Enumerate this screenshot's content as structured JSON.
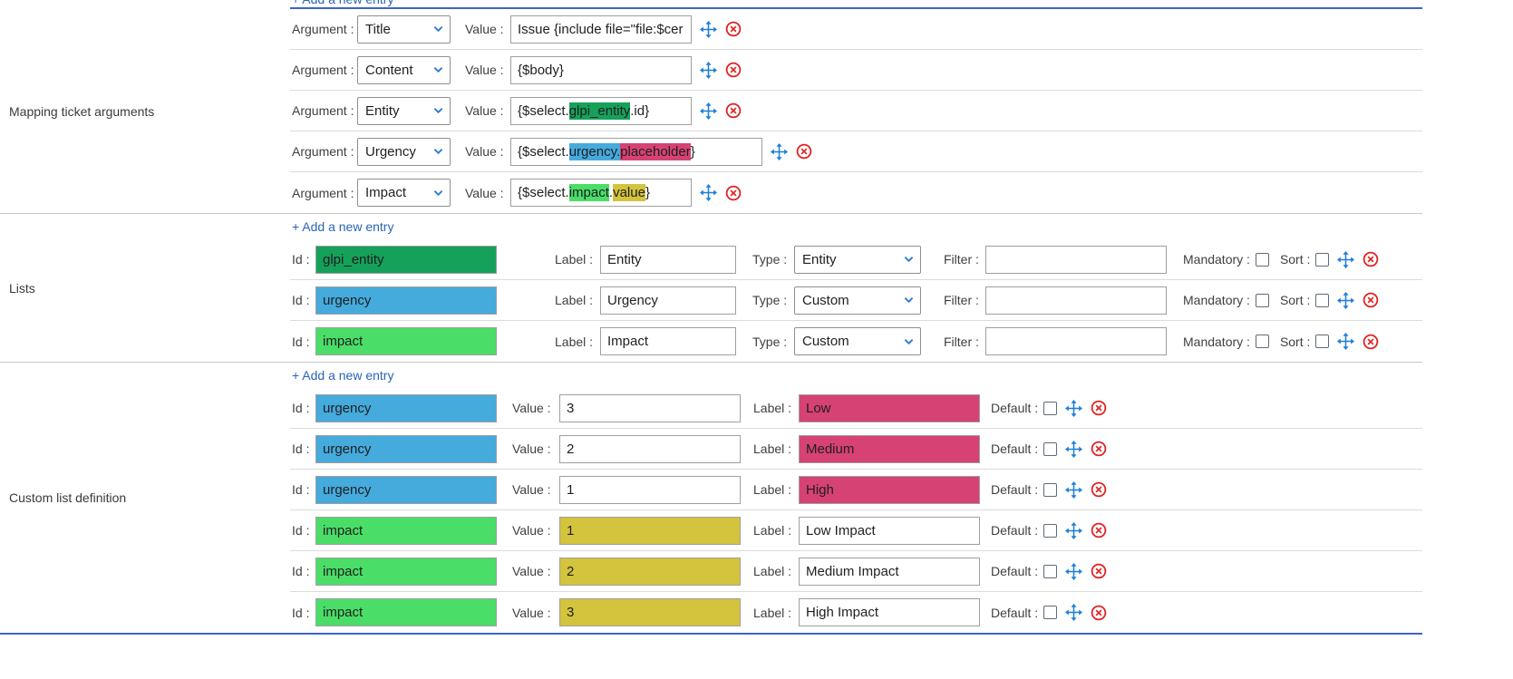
{
  "colors": {
    "entity_green": "#16a15b",
    "urgency_blue": "#45aadc",
    "impact_green": "#4ade68",
    "pink": "#d64273",
    "yellow": "#d4c33c",
    "link_blue": "#2864b8",
    "divider_blue": "#3c64c8",
    "move_blue": "#1d7ed8",
    "delete_red": "#e02222",
    "chevron_blue": "#2b7bd6"
  },
  "icons": {
    "move": "four-arrows-move",
    "delete": "circled-x",
    "chevron": "chevron-down"
  },
  "add_entry_label": "+ Add a new entry",
  "field_labels": {
    "argument": "Argument :",
    "value": "Value :",
    "id": "Id :",
    "label": "Label :",
    "type": "Type :",
    "filter": "Filter :",
    "mandatory": "Mandatory :",
    "sort": "Sort :",
    "default": "Default :"
  },
  "sections": {
    "mapping": {
      "title": "Mapping ticket arguments",
      "rows": [
        {
          "argument": "Title",
          "wide": false,
          "segments": [
            {
              "text": "Issue {include file=\"file:$cer",
              "bg": null
            }
          ]
        },
        {
          "argument": "Content",
          "wide": false,
          "segments": [
            {
              "text": "{$body}",
              "bg": null
            }
          ]
        },
        {
          "argument": "Entity",
          "wide": false,
          "segments": [
            {
              "text": "{$select.",
              "bg": null
            },
            {
              "text": "glpi_entity",
              "bg": "entity_green"
            },
            {
              "text": ".id}",
              "bg": null
            }
          ]
        },
        {
          "argument": "Urgency",
          "wide": true,
          "segments": [
            {
              "text": "{$select.",
              "bg": null
            },
            {
              "text": "urgency.",
              "bg": "urgency_blue"
            },
            {
              "text": "placeholder",
              "bg": "pink"
            },
            {
              "text": "}",
              "bg": null
            }
          ]
        },
        {
          "argument": "Impact",
          "wide": false,
          "segments": [
            {
              "text": "{$select.",
              "bg": null
            },
            {
              "text": "impact",
              "bg": "impact_green"
            },
            {
              "text": ".",
              "bg": null
            },
            {
              "text": "value",
              "bg": "yellow"
            },
            {
              "text": "}",
              "bg": null
            }
          ]
        }
      ]
    },
    "lists": {
      "title": "Lists",
      "rows": [
        {
          "id": "glpi_entity",
          "id_bg": "entity_green",
          "label": "Entity",
          "type": "Entity",
          "filter": "",
          "mandatory": false,
          "sort": false
        },
        {
          "id": "urgency",
          "id_bg": "urgency_blue",
          "label": "Urgency",
          "type": "Custom",
          "filter": "",
          "mandatory": false,
          "sort": false
        },
        {
          "id": "impact",
          "id_bg": "impact_green",
          "label": "Impact",
          "type": "Custom",
          "filter": "",
          "mandatory": false,
          "sort": false
        }
      ]
    },
    "custom": {
      "title": "Custom list definition",
      "rows": [
        {
          "id": "urgency",
          "id_bg": "urgency_blue",
          "value": "3",
          "value_bg": null,
          "label": "Low",
          "label_bg": "pink",
          "default": false
        },
        {
          "id": "urgency",
          "id_bg": "urgency_blue",
          "value": "2",
          "value_bg": null,
          "label": "Medium",
          "label_bg": "pink",
          "default": false
        },
        {
          "id": "urgency",
          "id_bg": "urgency_blue",
          "value": "1",
          "value_bg": null,
          "label": "High",
          "label_bg": "pink",
          "default": false
        },
        {
          "id": "impact",
          "id_bg": "impact_green",
          "value": "1",
          "value_bg": "yellow",
          "label": "Low Impact",
          "label_bg": null,
          "default": false
        },
        {
          "id": "impact",
          "id_bg": "impact_green",
          "value": "2",
          "value_bg": "yellow",
          "label": "Medium Impact",
          "label_bg": null,
          "default": false
        },
        {
          "id": "impact",
          "id_bg": "impact_green",
          "value": "3",
          "value_bg": "yellow",
          "label": "High Impact",
          "label_bg": null,
          "default": false
        }
      ]
    }
  }
}
